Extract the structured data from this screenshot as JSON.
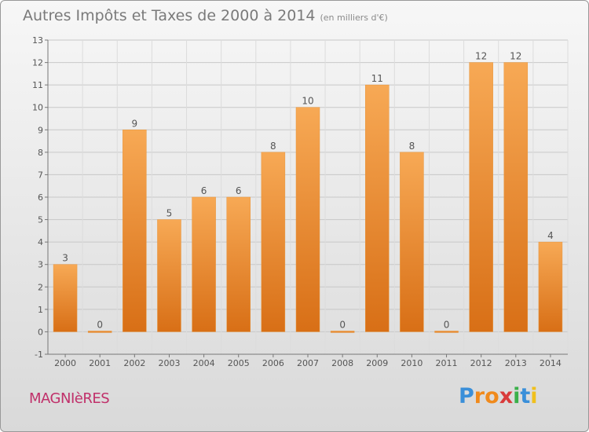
{
  "header": {
    "title": "Autres Impôts et Taxes de 2000 à 2014",
    "subtitle": "(en milliers d'€)"
  },
  "footer": {
    "town": "MAGNIèRES",
    "logo_letters": [
      "P",
      "r",
      "o",
      "x",
      "i",
      "t",
      "i"
    ],
    "logo_colors": [
      "#3a8fd9",
      "#f08a1c",
      "#f08a1c",
      "#d93a3a",
      "#3ab04a",
      "#3a8fd9",
      "#f0c01c"
    ]
  },
  "colors": {
    "bar_light": "#f7a955",
    "bar_dark": "#d86f16",
    "grid": "#c8c8c8",
    "axis_text": "#555555"
  },
  "chart_data": {
    "type": "bar",
    "title": "Autres Impôts et Taxes de 2000 à 2014",
    "subtitle": "(en milliers d'€)",
    "categories": [
      "2000",
      "2001",
      "2002",
      "2003",
      "2004",
      "2005",
      "2006",
      "2007",
      "2008",
      "2009",
      "2010",
      "2011",
      "2012",
      "2013",
      "2014"
    ],
    "values": [
      3,
      0,
      9,
      5,
      6,
      6,
      8,
      10,
      0,
      11,
      8,
      0,
      12,
      12,
      4
    ],
    "ylim": [
      -1,
      13
    ],
    "yticks": [
      -1,
      0,
      1,
      2,
      3,
      4,
      5,
      6,
      7,
      8,
      9,
      10,
      11,
      12,
      13
    ],
    "grid": true,
    "xlabel": "",
    "ylabel": ""
  }
}
